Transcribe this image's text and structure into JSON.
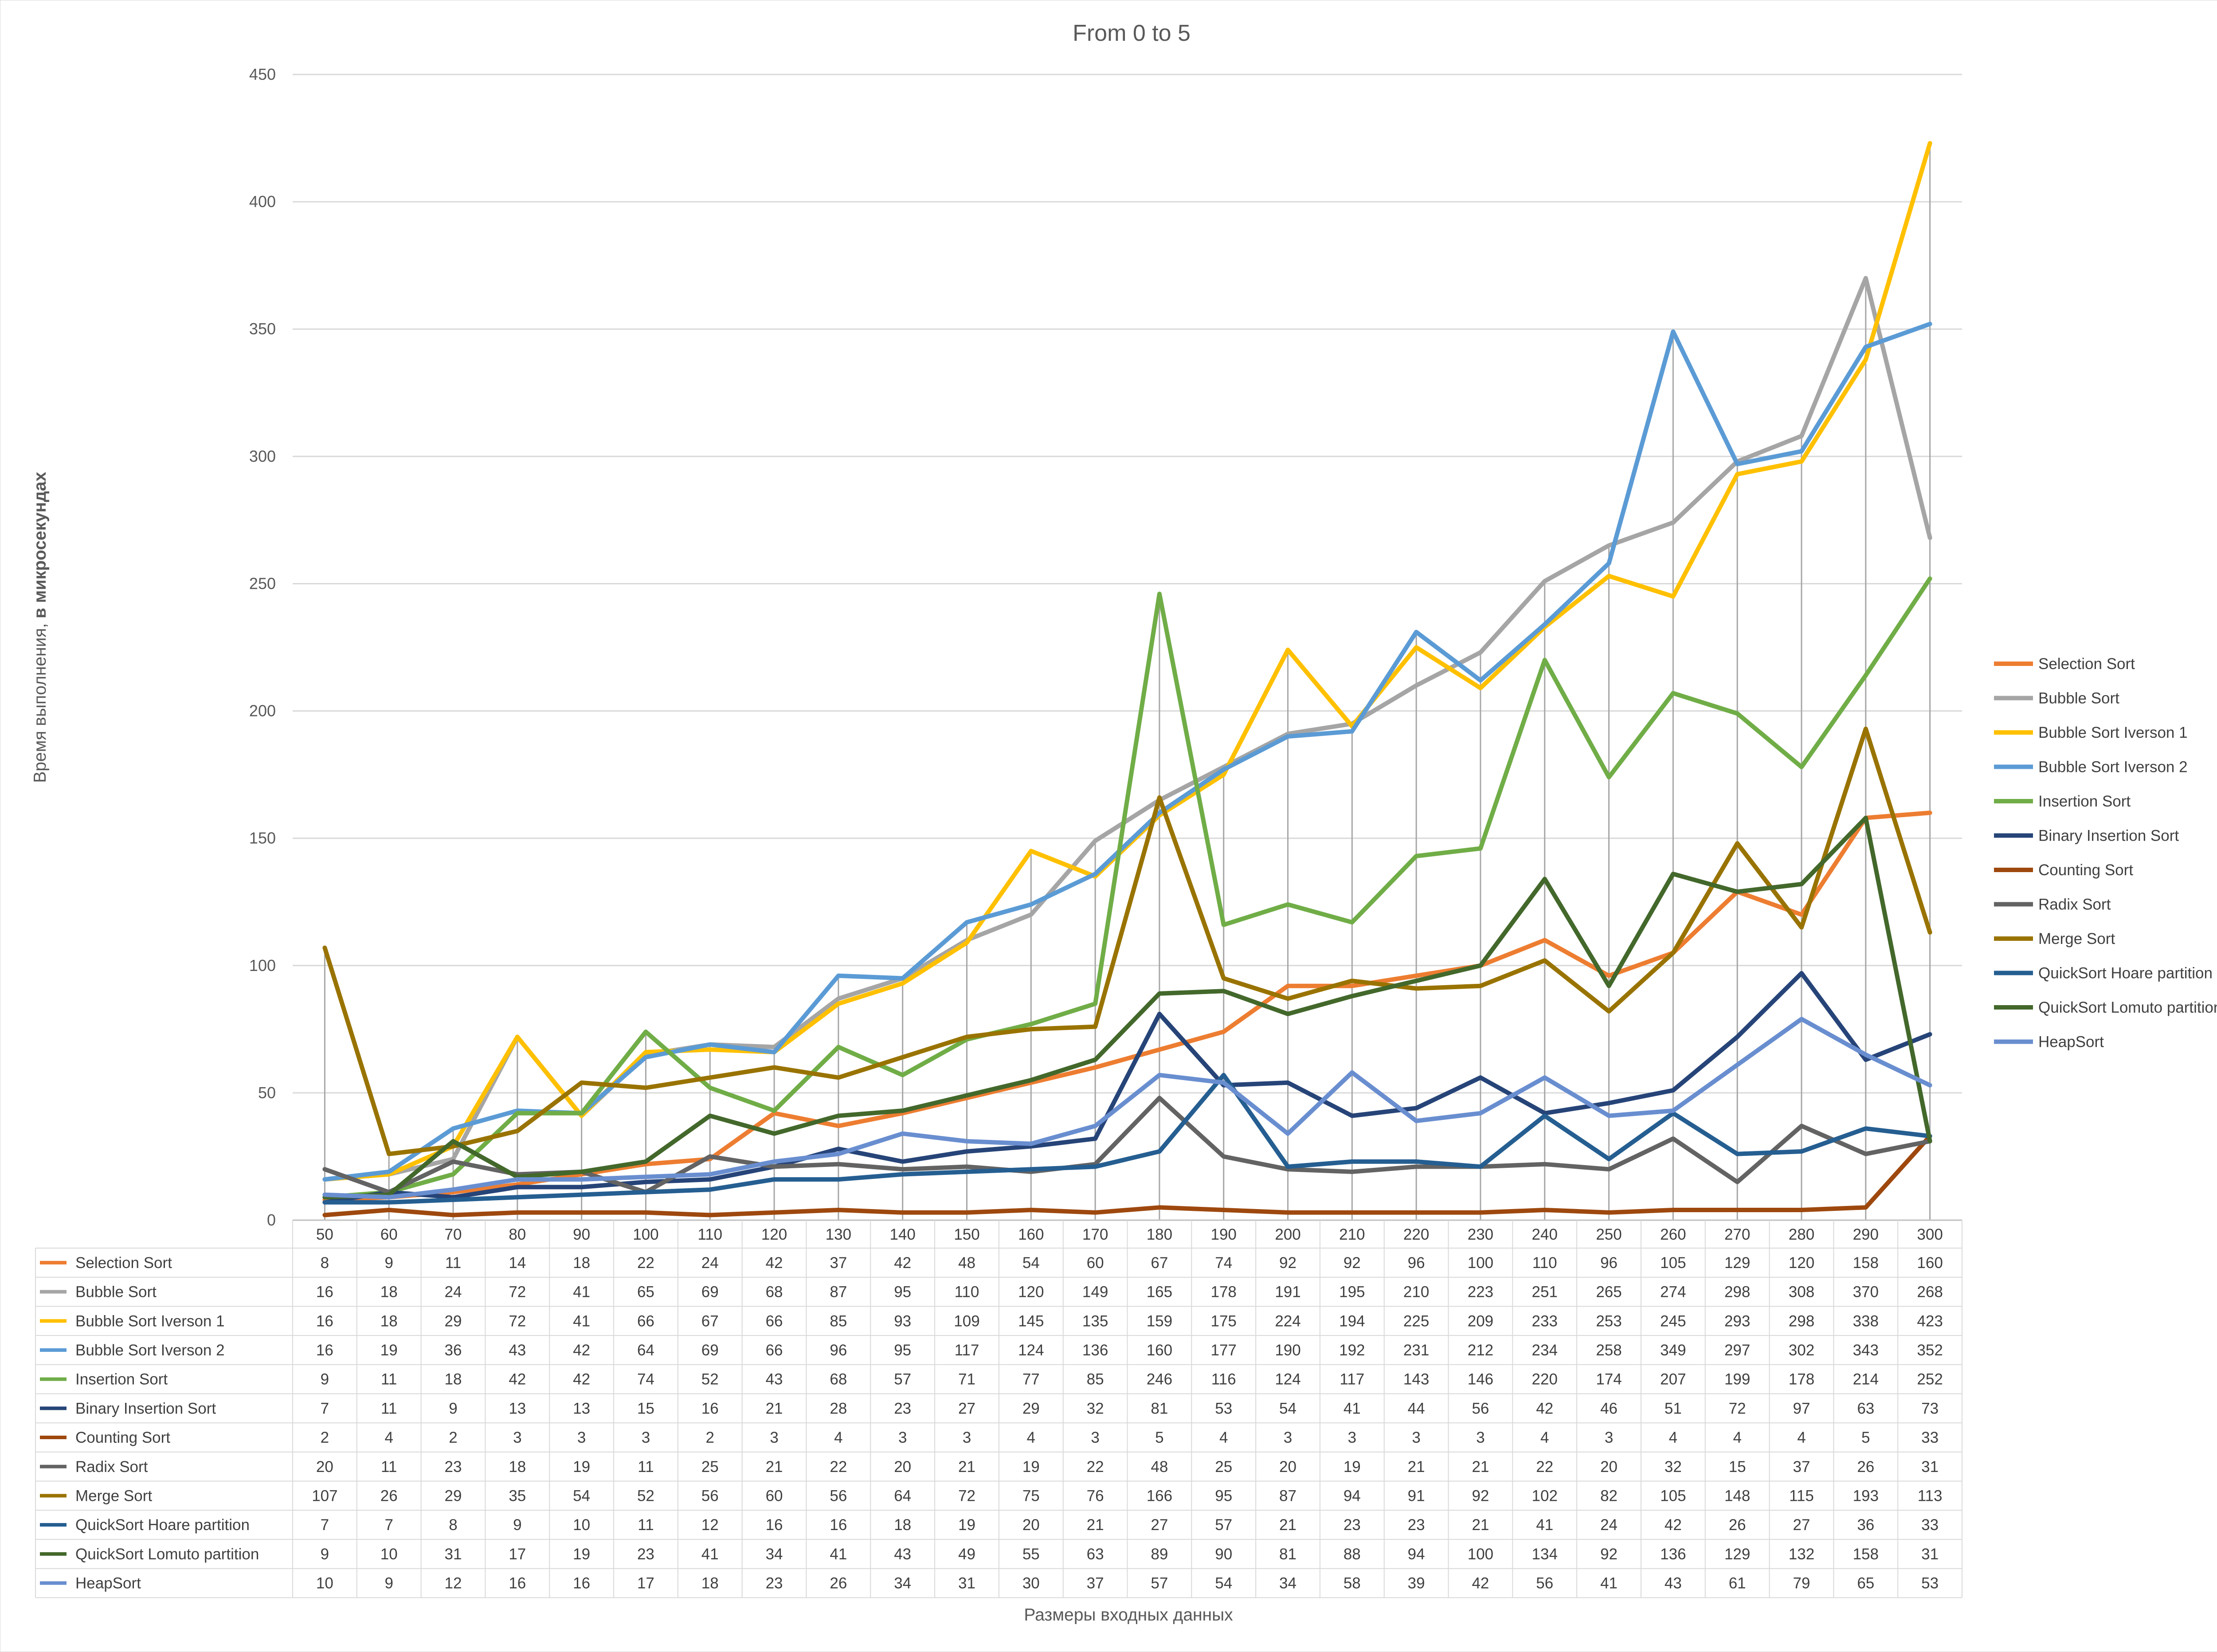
{
  "chart_data": {
    "type": "line",
    "title": "From 0 to 5",
    "ylabel_normal": "Время выполнения, ",
    "ylabel_bold": "в микросекундах",
    "xlabel": "Размеры  входных данных",
    "ylim": [
      0,
      450
    ],
    "yticks": [
      "0",
      "50",
      "100",
      "150",
      "200",
      "250",
      "300",
      "350",
      "400",
      "450"
    ],
    "grid": true,
    "legend_position": "right",
    "data_table": true,
    "categories": [
      "50",
      "60",
      "70",
      "80",
      "90",
      "100",
      "110",
      "120",
      "130",
      "140",
      "150",
      "160",
      "170",
      "180",
      "190",
      "200",
      "210",
      "220",
      "230",
      "240",
      "250",
      "260",
      "270",
      "280",
      "290",
      "300"
    ],
    "series": [
      {
        "name": "Selection Sort",
        "color": "#ED7D31",
        "values": [
          8,
          9,
          11,
          14,
          18,
          22,
          24,
          42,
          37,
          42,
          48,
          54,
          60,
          67,
          74,
          92,
          92,
          96,
          100,
          110,
          96,
          105,
          129,
          120,
          158,
          160
        ]
      },
      {
        "name": "Bubble Sort",
        "color": "#A5A5A5",
        "values": [
          16,
          18,
          24,
          72,
          41,
          65,
          69,
          68,
          87,
          95,
          110,
          120,
          149,
          165,
          178,
          191,
          195,
          210,
          223,
          251,
          265,
          274,
          298,
          308,
          370,
          268
        ]
      },
      {
        "name": "Bubble Sort Iverson 1",
        "color": "#FFC000",
        "values": [
          16,
          18,
          29,
          72,
          41,
          66,
          67,
          66,
          85,
          93,
          109,
          145,
          135,
          159,
          175,
          224,
          194,
          225,
          209,
          233,
          253,
          245,
          293,
          298,
          338,
          423
        ]
      },
      {
        "name": "Bubble Sort Iverson 2",
        "color": "#5B9BD5",
        "values": [
          16,
          19,
          36,
          43,
          42,
          64,
          69,
          66,
          96,
          95,
          117,
          124,
          136,
          160,
          177,
          190,
          192,
          231,
          212,
          234,
          258,
          349,
          297,
          302,
          343,
          352
        ]
      },
      {
        "name": "Insertion Sort",
        "color": "#70AD47",
        "values": [
          9,
          11,
          18,
          42,
          42,
          74,
          52,
          43,
          68,
          57,
          71,
          77,
          85,
          246,
          116,
          124,
          117,
          143,
          146,
          220,
          174,
          207,
          199,
          178,
          214,
          252
        ]
      },
      {
        "name": "Binary Insertion Sort",
        "color": "#264478",
        "values": [
          7,
          11,
          9,
          13,
          13,
          15,
          16,
          21,
          28,
          23,
          27,
          29,
          32,
          81,
          53,
          54,
          41,
          44,
          56,
          42,
          46,
          51,
          72,
          97,
          63,
          73
        ]
      },
      {
        "name": "Counting Sort",
        "color": "#9E480E",
        "values": [
          2,
          4,
          2,
          3,
          3,
          3,
          2,
          3,
          4,
          3,
          3,
          4,
          3,
          5,
          4,
          3,
          3,
          3,
          3,
          4,
          3,
          4,
          4,
          4,
          5,
          33
        ]
      },
      {
        "name": "Radix Sort",
        "color": "#636363",
        "values": [
          20,
          11,
          23,
          18,
          19,
          11,
          25,
          21,
          22,
          20,
          21,
          19,
          22,
          48,
          25,
          20,
          19,
          21,
          21,
          22,
          20,
          32,
          15,
          37,
          26,
          31
        ]
      },
      {
        "name": "Merge Sort",
        "color": "#997300",
        "values": [
          107,
          26,
          29,
          35,
          54,
          52,
          56,
          60,
          56,
          64,
          72,
          75,
          76,
          166,
          95,
          87,
          94,
          91,
          92,
          102,
          82,
          105,
          148,
          115,
          193,
          113
        ]
      },
      {
        "name": "QuickSort Hoare partition",
        "color": "#255E91",
        "values": [
          7,
          7,
          8,
          9,
          10,
          11,
          12,
          16,
          16,
          18,
          19,
          20,
          21,
          27,
          57,
          21,
          23,
          23,
          21,
          41,
          24,
          42,
          26,
          27,
          36,
          33
        ]
      },
      {
        "name": "QuickSort Lomuto partition",
        "color": "#43682B",
        "values": [
          9,
          10,
          31,
          17,
          19,
          23,
          41,
          34,
          41,
          43,
          49,
          55,
          63,
          89,
          90,
          81,
          88,
          94,
          100,
          134,
          92,
          136,
          129,
          132,
          158,
          31
        ]
      },
      {
        "name": "HeapSort",
        "color": "#698ED0",
        "values": [
          10,
          9,
          12,
          16,
          16,
          17,
          18,
          23,
          26,
          34,
          31,
          30,
          37,
          57,
          54,
          34,
          58,
          39,
          42,
          56,
          41,
          43,
          61,
          79,
          65,
          53
        ]
      }
    ]
  }
}
